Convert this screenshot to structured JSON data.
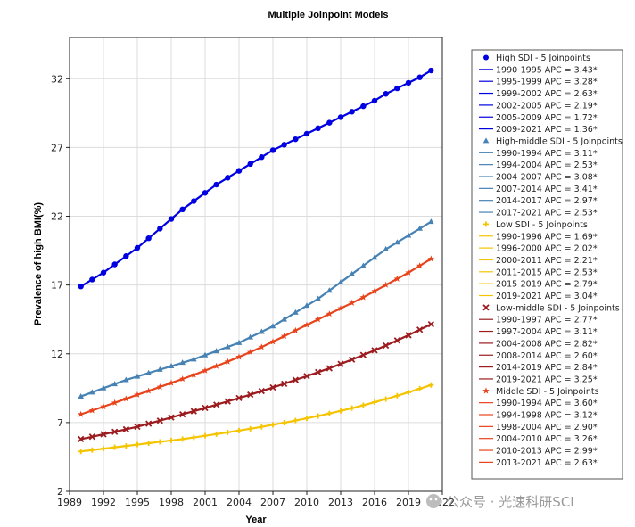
{
  "chart_data": {
    "type": "line",
    "title": "Multiple Joinpoint Models",
    "xlabel": "Year",
    "ylabel": "Prevalence of high BMI(%)",
    "xlim": [
      1989,
      2022
    ],
    "ylim": [
      2,
      35
    ],
    "x_ticks": [
      1989,
      1992,
      1995,
      1998,
      2001,
      2004,
      2007,
      2010,
      2013,
      2016,
      2019,
      2022
    ],
    "y_ticks": [
      2,
      7,
      12,
      17,
      22,
      27,
      32
    ],
    "grid": true,
    "legend_position": "right",
    "x": [
      1990,
      1991,
      1992,
      1993,
      1994,
      1995,
      1996,
      1997,
      1998,
      1999,
      2000,
      2001,
      2002,
      2003,
      2004,
      2005,
      2006,
      2007,
      2008,
      2009,
      2010,
      2011,
      2012,
      2013,
      2014,
      2015,
      2016,
      2017,
      2018,
      2019,
      2020,
      2021
    ],
    "series": [
      {
        "name": "High SDI - 5 Joinpoints",
        "marker": "circle",
        "color": "#0000e0",
        "values": [
          16.9,
          17.4,
          17.9,
          18.5,
          19.1,
          19.7,
          20.4,
          21.1,
          21.8,
          22.5,
          23.1,
          23.7,
          24.3,
          24.8,
          25.3,
          25.8,
          26.3,
          26.8,
          27.2,
          27.6,
          28.0,
          28.4,
          28.8,
          29.2,
          29.6,
          30.0,
          30.4,
          30.9,
          31.3,
          31.7,
          32.1,
          32.6
        ],
        "segments": [
          "1990-1995 APC = 3.43*",
          "1995-1999 APC = 3.28*",
          "1999-2002 APC = 2.63*",
          "2002-2005 APC = 2.19*",
          "2005-2009 APC = 1.72*",
          "2009-2021 APC = 1.36*"
        ]
      },
      {
        "name": "High-middle SDI - 5 Joinpoints",
        "marker": "triangle",
        "color": "#4682b4",
        "values": [
          8.9,
          9.2,
          9.5,
          9.8,
          10.1,
          10.35,
          10.6,
          10.85,
          11.1,
          11.35,
          11.6,
          11.9,
          12.2,
          12.5,
          12.8,
          13.2,
          13.6,
          14.0,
          14.5,
          15.0,
          15.5,
          16.0,
          16.6,
          17.2,
          17.8,
          18.4,
          19.0,
          19.6,
          20.1,
          20.6,
          21.1,
          21.6
        ],
        "segments": [
          "1990-1994 APC = 3.11*",
          "1994-2004 APC = 2.53*",
          "2004-2007 APC = 3.08*",
          "2007-2014 APC = 3.41*",
          "2014-2017 APC = 2.97*",
          "2017-2021 APC = 2.53*"
        ]
      },
      {
        "name": "Low SDI - 5 Joinpoints",
        "marker": "plus",
        "color": "#f5c400",
        "values": [
          4.9,
          5.0,
          5.1,
          5.2,
          5.3,
          5.4,
          5.5,
          5.6,
          5.7,
          5.8,
          5.92,
          6.04,
          6.16,
          6.29,
          6.42,
          6.55,
          6.69,
          6.84,
          6.99,
          7.15,
          7.31,
          7.48,
          7.66,
          7.85,
          8.05,
          8.26,
          8.48,
          8.71,
          8.95,
          9.2,
          9.46,
          9.73
        ],
        "segments": [
          "1990-1996 APC = 1.69*",
          "1996-2000 APC = 2.02*",
          "2000-2011 APC = 2.21*",
          "2011-2015 APC = 2.53*",
          "2015-2019 APC = 2.79*",
          "2019-2021 APC = 3.04*"
        ]
      },
      {
        "name": "Low-middle SDI - 5 Joinpoints",
        "marker": "cross",
        "color": "#9b1b1f",
        "values": [
          5.8,
          5.97,
          6.15,
          6.33,
          6.51,
          6.7,
          6.92,
          7.14,
          7.37,
          7.6,
          7.83,
          8.06,
          8.3,
          8.54,
          8.78,
          9.03,
          9.29,
          9.55,
          9.82,
          10.1,
          10.38,
          10.66,
          10.95,
          11.26,
          11.58,
          11.91,
          12.25,
          12.6,
          12.97,
          13.35,
          13.75,
          14.15
        ],
        "segments": [
          "1990-1997 APC = 2.77*",
          "1997-2004 APC = 3.11*",
          "2004-2008 APC = 2.82*",
          "2008-2014 APC = 2.60*",
          "2014-2019 APC = 2.84*",
          "2019-2021 APC = 3.25*"
        ]
      },
      {
        "name": "Middle SDI - 5 Joinpoints",
        "marker": "star",
        "color": "#e8431a",
        "values": [
          7.6,
          7.88,
          8.16,
          8.44,
          8.73,
          9.02,
          9.3,
          9.59,
          9.88,
          10.17,
          10.47,
          10.78,
          11.1,
          11.43,
          11.77,
          12.12,
          12.49,
          12.88,
          13.28,
          13.69,
          14.1,
          14.5,
          14.9,
          15.3,
          15.7,
          16.1,
          16.55,
          17.0,
          17.45,
          17.9,
          18.4,
          18.9
        ],
        "segments": [
          "1990-1994 APC = 3.60*",
          "1994-1998 APC = 3.12*",
          "1998-2004 APC = 2.90*",
          "2004-2010 APC = 3.26*",
          "2010-2013 APC = 2.99*",
          "2013-2021 APC = 2.63*"
        ]
      }
    ]
  },
  "watermark": "公众号 · 光速科研SCI"
}
